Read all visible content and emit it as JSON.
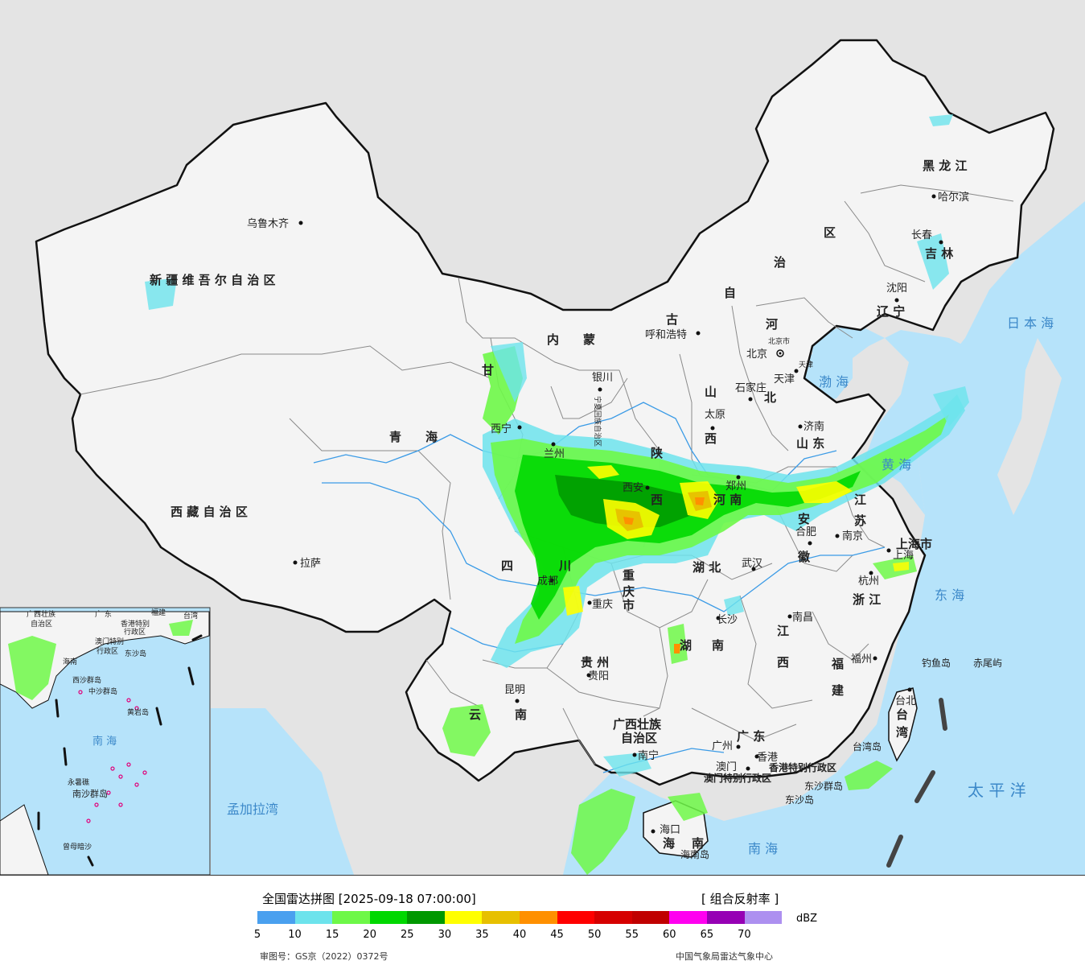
{
  "colors": {
    "sea": "#b6e3fa",
    "land_other": "#e4e4e4",
    "china_land": "#f4f4f4",
    "border": "#111111",
    "province_border": "#8a8a8a",
    "river": "#3b9be6",
    "label": "#222222",
    "sea_label": "#3b88c9"
  },
  "map": {
    "provinces": [
      {
        "name": "新 疆 维 吾 尔 自 治 区"
      },
      {
        "name": "西 藏 自 治 区"
      },
      {
        "name": "青　　海"
      },
      {
        "name": "甘"
      },
      {
        "name": "内　　蒙"
      },
      {
        "name": "古"
      },
      {
        "name": "自"
      },
      {
        "name": "治"
      },
      {
        "name": "区"
      },
      {
        "name": "黑 龙 江"
      },
      {
        "name": "吉 林"
      },
      {
        "name": "辽 宁"
      },
      {
        "name": "河"
      },
      {
        "name": "北"
      },
      {
        "name": "山"
      },
      {
        "name": "西"
      },
      {
        "name": "山 东"
      },
      {
        "name": "陕"
      },
      {
        "name": "西"
      },
      {
        "name": "河 南"
      },
      {
        "name": "江"
      },
      {
        "name": "苏"
      },
      {
        "name": "安"
      },
      {
        "name": "徽"
      },
      {
        "name": "上海市"
      },
      {
        "name": "浙 江"
      },
      {
        "name": "湖 北"
      },
      {
        "name": "四"
      },
      {
        "name": "川"
      },
      {
        "name": "重"
      },
      {
        "name": "庆"
      },
      {
        "name": "市"
      },
      {
        "name": "湖"
      },
      {
        "name": "南"
      },
      {
        "name": "江"
      },
      {
        "name": "西"
      },
      {
        "name": "福"
      },
      {
        "name": "建"
      },
      {
        "name": "贵 州"
      },
      {
        "name": "云"
      },
      {
        "name": "南"
      },
      {
        "name": "广西壮族"
      },
      {
        "name": "自治区"
      },
      {
        "name": "广 东"
      },
      {
        "name": "海"
      },
      {
        "name": "南"
      },
      {
        "name": "台"
      },
      {
        "name": "湾"
      },
      {
        "name": "宁夏回族自治区"
      },
      {
        "name": "北京市"
      },
      {
        "name": "天津"
      },
      {
        "name": "香港特别行政区"
      },
      {
        "name": "澳门特别行政区"
      }
    ],
    "cities": [
      {
        "name": "乌鲁木齐"
      },
      {
        "name": "拉萨"
      },
      {
        "name": "西宁"
      },
      {
        "name": "兰州"
      },
      {
        "name": "银川"
      },
      {
        "name": "呼和浩特"
      },
      {
        "name": "北京"
      },
      {
        "name": "天津"
      },
      {
        "name": "石家庄"
      },
      {
        "name": "太原"
      },
      {
        "name": "济南"
      },
      {
        "name": "西安"
      },
      {
        "name": "郑州"
      },
      {
        "name": "合肥"
      },
      {
        "name": "南京"
      },
      {
        "name": "上海"
      },
      {
        "name": "杭州"
      },
      {
        "name": "武汉"
      },
      {
        "name": "成都"
      },
      {
        "name": "重庆"
      },
      {
        "name": "长沙"
      },
      {
        "name": "南昌"
      },
      {
        "name": "福州"
      },
      {
        "name": "台北"
      },
      {
        "name": "贵阳"
      },
      {
        "name": "昆明"
      },
      {
        "name": "南宁"
      },
      {
        "name": "广州"
      },
      {
        "name": "香港"
      },
      {
        "name": "澳门"
      },
      {
        "name": "海口"
      },
      {
        "name": "哈尔滨"
      },
      {
        "name": "长春"
      },
      {
        "name": "沈阳"
      }
    ],
    "seas": [
      {
        "name": "日 本 海"
      },
      {
        "name": "渤 海"
      },
      {
        "name": "黄 海"
      },
      {
        "name": "东 海"
      },
      {
        "name": "太 平 洋"
      },
      {
        "name": "南 海"
      },
      {
        "name": "孟加拉湾"
      }
    ],
    "islands": [
      {
        "name": "钓鱼岛"
      },
      {
        "name": "赤尾屿"
      },
      {
        "name": "东沙群岛"
      },
      {
        "name": "东沙岛"
      },
      {
        "name": "台湾岛"
      },
      {
        "name": "海南岛"
      }
    ],
    "inset": {
      "labels": [
        "广西壮族",
        "自治区",
        "广 东",
        "福建",
        "台湾",
        "香港特别",
        "行政区",
        "澳门特别",
        "行政区",
        "东沙岛",
        "海南",
        "西沙群岛",
        "中沙群岛",
        "黄岩岛",
        "南 海",
        "南沙群岛",
        "永暑礁",
        "曾母暗沙"
      ]
    }
  },
  "legend": {
    "title": "全国雷达拼图 [2025-09-18 07:00:00]",
    "product": "[ 组合反射率 ]",
    "unit": "dBZ",
    "colors": [
      "#4aa0ef",
      "#6de3ec",
      "#6ef848",
      "#00d800",
      "#009800",
      "#ffff00",
      "#e7c000",
      "#ff9000",
      "#ff0000",
      "#d60000",
      "#c00000",
      "#ff00f0",
      "#9600b4",
      "#ad90f0"
    ],
    "ticks": [
      "5",
      "10",
      "15",
      "20",
      "25",
      "30",
      "35",
      "40",
      "45",
      "50",
      "55",
      "60",
      "65",
      "70"
    ],
    "review_no": "审图号：GS京（2022）0372号",
    "source": "中国气象局雷达气象中心"
  }
}
